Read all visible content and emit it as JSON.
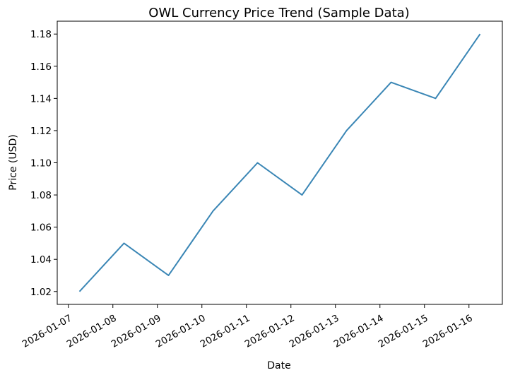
{
  "chart_data": {
    "type": "line",
    "title": "OWL Currency Price Trend (Sample Data)",
    "xlabel": "Date",
    "ylabel": "Price (USD)",
    "x": [
      "2026-01-07T06:00",
      "2026-01-08T06:00",
      "2026-01-09T06:00",
      "2026-01-10T06:00",
      "2026-01-11T06:00",
      "2026-01-12T06:00",
      "2026-01-13T06:00",
      "2026-01-14T06:00",
      "2026-01-15T06:00",
      "2026-01-16T06:00"
    ],
    "x_ticks": [
      "2026-01-07",
      "2026-01-08",
      "2026-01-09",
      "2026-01-10",
      "2026-01-11",
      "2026-01-12",
      "2026-01-13",
      "2026-01-14",
      "2026-01-15",
      "2026-01-16"
    ],
    "ylim": [
      1.012,
      1.188
    ],
    "y_ticks": [
      "1.02",
      "1.04",
      "1.06",
      "1.08",
      "1.10",
      "1.12",
      "1.14",
      "1.16",
      "1.18"
    ],
    "series": [
      {
        "values": [
          1.02,
          1.05,
          1.03,
          1.07,
          1.1,
          1.08,
          1.12,
          1.15,
          1.14,
          1.18
        ],
        "color": "#3a86b5"
      }
    ],
    "grid": false,
    "legend": "none"
  }
}
